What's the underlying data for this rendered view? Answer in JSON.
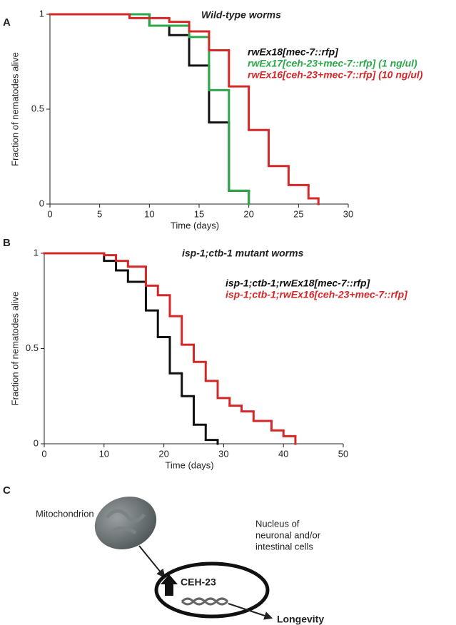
{
  "panel_labels": [
    "A",
    "B",
    "C"
  ],
  "chart_data": [
    {
      "type": "step",
      "annotation": "Wild-type worms",
      "xlabel": "Time (days)",
      "ylabel": "Fraction of nematodes alive",
      "xlim": [
        0,
        30
      ],
      "ylim": [
        0,
        1
      ],
      "xticks": [
        0,
        5,
        10,
        15,
        20,
        25,
        30
      ],
      "yticks": [
        0,
        0.5,
        1
      ],
      "series": [
        {
          "name": "rwEx18[mec-7::rfp]",
          "color": "#111111",
          "x": [
            0,
            10,
            12,
            14,
            16,
            18,
            20
          ],
          "values": [
            1,
            0.94,
            0.89,
            0.73,
            0.43,
            0.07,
            0
          ]
        },
        {
          "name": "rwEx17[ceh-23+mec-7::rfp] (1 ng/ul)",
          "color": "#2ca84a",
          "x": [
            0,
            10,
            14,
            16,
            18,
            20
          ],
          "values": [
            1,
            0.94,
            0.88,
            0.6,
            0.07,
            0
          ]
        },
        {
          "name": "rwEx16[ceh-23+mec-7::rfp] (10 ng/ul)",
          "color": "#d62728",
          "x": [
            0,
            8,
            12,
            14,
            16,
            18,
            20,
            22,
            24,
            26,
            27
          ],
          "values": [
            1,
            0.98,
            0.96,
            0.91,
            0.81,
            0.62,
            0.39,
            0.2,
            0.1,
            0.03,
            0
          ]
        }
      ]
    },
    {
      "type": "step",
      "annotation": "isp-1;ctb-1 mutant worms",
      "xlabel": "Time (days)",
      "ylabel": "Fraction of nematodes alive",
      "xlim": [
        0,
        50
      ],
      "ylim": [
        0,
        1
      ],
      "xticks": [
        0,
        10,
        20,
        30,
        40,
        50
      ],
      "yticks": [
        0,
        0.5,
        1
      ],
      "series": [
        {
          "name": "isp-1;ctb-1;rwEx18[mec-7::rfp]",
          "color": "#111111",
          "x": [
            0,
            10,
            12,
            14,
            17,
            19,
            21,
            23,
            25,
            27,
            29
          ],
          "values": [
            1,
            0.96,
            0.91,
            0.85,
            0.7,
            0.56,
            0.37,
            0.25,
            0.1,
            0.02,
            0
          ]
        },
        {
          "name": "isp-1;ctb-1;rwEx16[ceh-23+mec-7::rfp]",
          "color": "#d62728",
          "x": [
            0,
            10,
            12,
            14,
            17,
            19,
            21,
            23,
            25,
            27,
            29,
            31,
            33,
            35,
            38,
            40,
            42
          ],
          "values": [
            1,
            0.99,
            0.96,
            0.93,
            0.83,
            0.78,
            0.67,
            0.52,
            0.43,
            0.33,
            0.24,
            0.2,
            0.17,
            0.12,
            0.07,
            0.04,
            0
          ]
        }
      ]
    }
  ],
  "diagram": {
    "mitochondrion": "Mitochondrion",
    "nucleus": [
      "Nucleus of",
      "neuronal and/or",
      "intestinal cells"
    ],
    "protein": "CEH-23",
    "outcome": "Longevity"
  }
}
